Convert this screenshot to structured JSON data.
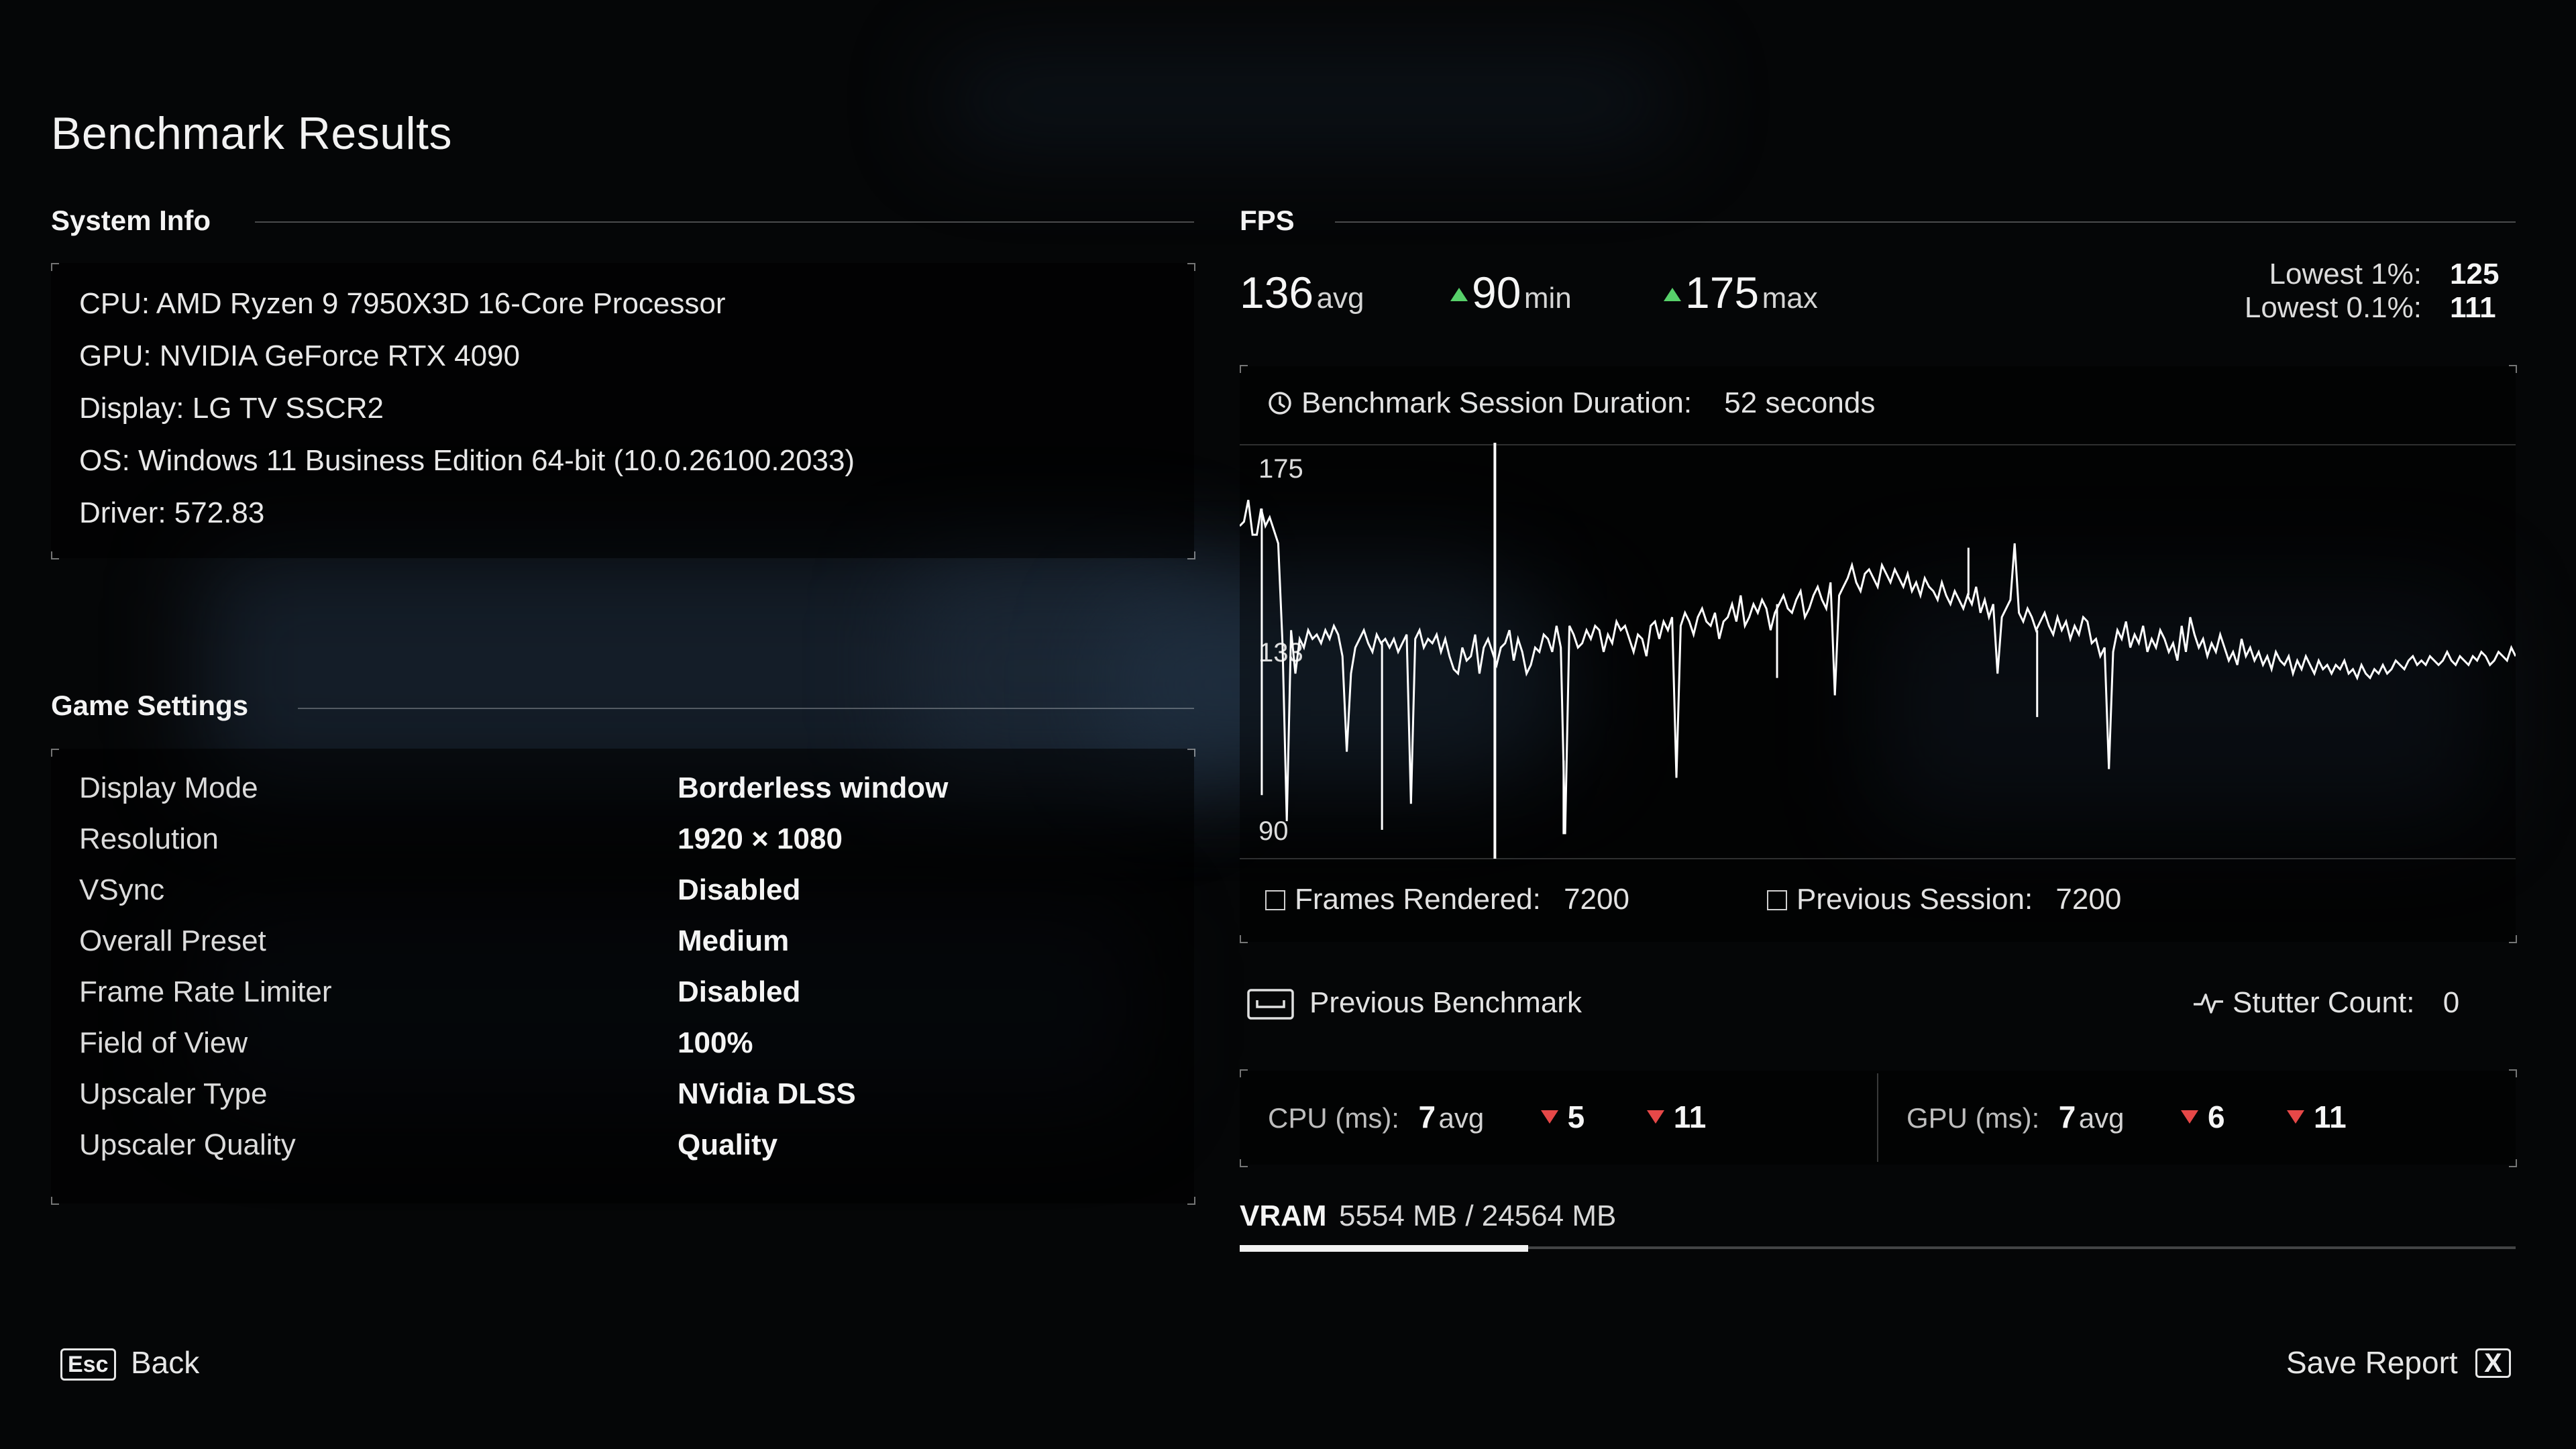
{
  "title": "Benchmark Results",
  "system_info": {
    "heading": "System Info",
    "lines": [
      "CPU: AMD Ryzen 9 7950X3D 16-Core Processor",
      "GPU: NVIDIA GeForce RTX 4090",
      "Display: LG TV SSCR2",
      "OS: Windows 11 Business Edition 64-bit (10.0.26100.2033)",
      "Driver: 572.83"
    ]
  },
  "game_settings": {
    "heading": "Game Settings",
    "rows": [
      {
        "label": "Display Mode",
        "value": "Borderless window"
      },
      {
        "label": "Resolution",
        "value": "1920 × 1080"
      },
      {
        "label": "VSync",
        "value": "Disabled"
      },
      {
        "label": "Overall Preset",
        "value": "Medium"
      },
      {
        "label": "Frame Rate Limiter",
        "value": "Disabled"
      },
      {
        "label": "Field of View",
        "value": "100%"
      },
      {
        "label": "Upscaler Type",
        "value": "NVidia DLSS"
      },
      {
        "label": "Upscaler Quality",
        "value": "Quality"
      }
    ]
  },
  "fps": {
    "heading": "FPS",
    "avg": "136",
    "avg_unit": "avg",
    "min": "90",
    "min_unit": "min",
    "max": "175",
    "max_unit": "max",
    "lowest_1_label": "Lowest 1%:",
    "lowest_1": "125",
    "lowest_01_label": "Lowest 0.1%:",
    "lowest_01": "111",
    "duration_label": "Benchmark Session Duration:",
    "duration_value": "52 seconds",
    "frames_label": "Frames Rendered:",
    "frames_value": "7200",
    "prev_label": "Previous Session:",
    "prev_value": "7200"
  },
  "chart_data": {
    "type": "line",
    "y_ticks": [
      "175",
      "133",
      "90"
    ],
    "ylim": [
      90,
      175
    ],
    "duration_seconds": 52,
    "grid": false,
    "series": [
      {
        "values": [
          162,
          163,
          168,
          160,
          160,
          166,
          162,
          164,
          161,
          158,
          135,
          94,
          138,
          128,
          136,
          134,
          138,
          136,
          137,
          135,
          138,
          136,
          139,
          137,
          132,
          110,
          128,
          134,
          136,
          138,
          135,
          133,
          137,
          135,
          136,
          134,
          136,
          133,
          135,
          137,
          98,
          136,
          138,
          134,
          136,
          135,
          137,
          133,
          136,
          132,
          129,
          128,
          134,
          131,
          132,
          137,
          128,
          134,
          136,
          133,
          130,
          134,
          135,
          138,
          131,
          136,
          133,
          128,
          130,
          134,
          133,
          137,
          136,
          133,
          139,
          134,
          91,
          139,
          137,
          134,
          135,
          138,
          136,
          139,
          138,
          133,
          137,
          135,
          140,
          138,
          139,
          136,
          133,
          137,
          136,
          132,
          139,
          140,
          136,
          140,
          138,
          141,
          104,
          139,
          142,
          140,
          137,
          141,
          143,
          140,
          139,
          142,
          136,
          140,
          141,
          144,
          140,
          146,
          139,
          141,
          144,
          142,
          145,
          143,
          138,
          142,
          144,
          146,
          143,
          142,
          145,
          147,
          141,
          143,
          146,
          148,
          145,
          143,
          149,
          123,
          146,
          148,
          150,
          153,
          149,
          147,
          151,
          152,
          150,
          148,
          153,
          151,
          149,
          152,
          150,
          148,
          151,
          147,
          149,
          146,
          150,
          148,
          147,
          145,
          149,
          146,
          144,
          147,
          145,
          143,
          146,
          144,
          148,
          142,
          145,
          141,
          144,
          128,
          141,
          143,
          145,
          158,
          142,
          140,
          143,
          141,
          138,
          140,
          142,
          139,
          137,
          141,
          138,
          140,
          136,
          139,
          137,
          141,
          140,
          135,
          136,
          132,
          134,
          106,
          133,
          138,
          136,
          140,
          134,
          137,
          135,
          139,
          133,
          136,
          134,
          138,
          136,
          133,
          135,
          131,
          139,
          133,
          141,
          137,
          134,
          136,
          132,
          135,
          133,
          137,
          134,
          131,
          133,
          130,
          136,
          132,
          134,
          131,
          133,
          130,
          132,
          129,
          133,
          131,
          130,
          132,
          128,
          131,
          129,
          132,
          130,
          128,
          131,
          129,
          130,
          128,
          130,
          129,
          131,
          128,
          129,
          127,
          130,
          128,
          127,
          129,
          128,
          130,
          128,
          129,
          131,
          130,
          129,
          131,
          132,
          130,
          131,
          130,
          132,
          131,
          130,
          131,
          133,
          131,
          130,
          132,
          131,
          130,
          132,
          131,
          133,
          132,
          130,
          131,
          133,
          132,
          131,
          134,
          132
        ]
      }
    ],
    "spikes": [
      {
        "t": 0.9,
        "value": 100
      },
      {
        "t": 5.8,
        "value": 92
      },
      {
        "t": 13.2,
        "value": 108
      },
      {
        "t": 21.9,
        "value": 127
      },
      {
        "t": 29.7,
        "value": 157
      },
      {
        "t": 32.5,
        "value": 118
      }
    ],
    "marker_t": 10.4
  },
  "previous_benchmark": {
    "label": "Previous Benchmark",
    "stutter_label": "Stutter Count:",
    "stutter_value": "0"
  },
  "cpu": {
    "label": "CPU (ms):",
    "avg": "7",
    "avg_unit": "avg",
    "min": "5",
    "max": "11"
  },
  "gpu": {
    "label": "GPU (ms):",
    "avg": "7",
    "avg_unit": "avg",
    "min": "6",
    "max": "11"
  },
  "vram": {
    "label": "VRAM",
    "value": "5554 MB / 24564 MB",
    "used_fraction": 0.226
  },
  "footer": {
    "back_key": "Esc",
    "back_label": "Back",
    "save_label": "Save Report",
    "save_key": "X"
  },
  "colors": {
    "accent_up": "#57d06a",
    "accent_down": "#e64848"
  }
}
